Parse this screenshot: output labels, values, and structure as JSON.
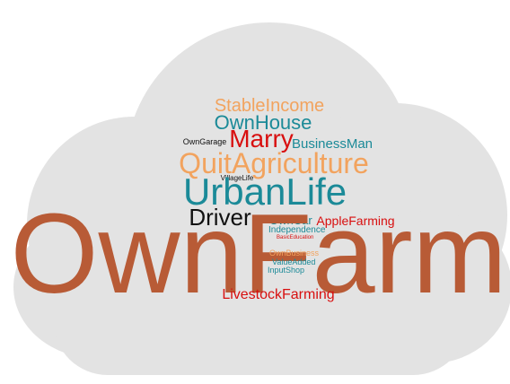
{
  "words": [
    {
      "text": "StableIncome",
      "color": "#f2a35e"
    },
    {
      "text": "OwnHouse",
      "color": "#1b8a98"
    },
    {
      "text": "OwnGarage",
      "color": "#111111"
    },
    {
      "text": "Marry",
      "color": "#d80f0f"
    },
    {
      "text": "BusinessMan",
      "color": "#1b8a98"
    },
    {
      "text": "QuitAgriculture",
      "color": "#f2a35e"
    },
    {
      "text": "VillageLife",
      "color": "#111111"
    },
    {
      "text": "UrbanLife",
      "color": "#1b8a98"
    },
    {
      "text": "Driver",
      "color": "#111111"
    },
    {
      "text": "OwnCar",
      "color": "#1b8a98"
    },
    {
      "text": "AppleFarming",
      "color": "#d80f0f"
    },
    {
      "text": "Independence",
      "color": "#1b8a98"
    },
    {
      "text": "BasicEducation",
      "color": "#d80f0f"
    },
    {
      "text": "OwnFarm",
      "color": "#b85b36"
    },
    {
      "text": "OwnBusiness",
      "color": "#f2a35e"
    },
    {
      "text": "ValueAdded",
      "color": "#1b8a98"
    },
    {
      "text": "InputShop",
      "color": "#1b8a98"
    },
    {
      "text": "LivestockFarming",
      "color": "#d80f0f"
    }
  ]
}
